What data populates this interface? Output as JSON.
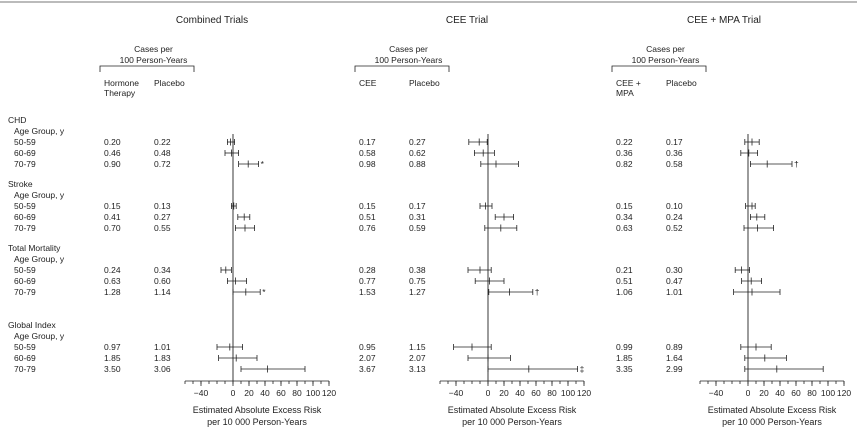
{
  "row_labels": [
    {
      "text": "CHD",
      "group": 0
    },
    {
      "text": "Age Group, y",
      "group": 0
    },
    {
      "text": "50-59",
      "group": 0,
      "row": 0
    },
    {
      "text": "60-69",
      "group": 0,
      "row": 1
    },
    {
      "text": "70-79",
      "group": 0,
      "row": 2
    },
    {
      "text": "Stroke",
      "group": 1
    },
    {
      "text": "Age Group, y",
      "group": 1
    },
    {
      "text": "50-59",
      "group": 1,
      "row": 0
    },
    {
      "text": "60-69",
      "group": 1,
      "row": 1
    },
    {
      "text": "70-79",
      "group": 1,
      "row": 2
    },
    {
      "text": "Total Mortality",
      "group": 2
    },
    {
      "text": "Age Group, y",
      "group": 2
    },
    {
      "text": "50-59",
      "group": 2,
      "row": 0
    },
    {
      "text": "60-69",
      "group": 2,
      "row": 1
    },
    {
      "text": "70-79",
      "group": 2,
      "row": 2
    },
    {
      "text": "Global Index",
      "group": 3
    },
    {
      "text": "Age Group, y",
      "group": 3
    },
    {
      "text": "50-59",
      "group": 3,
      "row": 0
    },
    {
      "text": "60-69",
      "group": 3,
      "row": 1
    },
    {
      "text": "70-79",
      "group": 3,
      "row": 2
    }
  ],
  "chart_data": [
    {
      "type": "forest",
      "title": "Combined Trials",
      "cases_header": [
        "Cases per",
        "100 Person-Years"
      ],
      "col_labels": [
        [
          "Hormone",
          "Therapy"
        ],
        [
          "Placebo"
        ]
      ],
      "xlabel": [
        "Estimated Absolute Excess Risk",
        "per 10 000 Person-Years"
      ],
      "xlim": [
        -60,
        120
      ],
      "xticks": [
        -40,
        0,
        20,
        40,
        60,
        80,
        100,
        120
      ],
      "xtick_labels": [
        "−40",
        "0",
        "20",
        "40",
        "60",
        "80",
        "100",
        "120"
      ],
      "outcomes": [
        "CHD",
        "Stroke",
        "Total Mortality",
        "Global Index"
      ],
      "age_groups": [
        "50-59",
        "60-69",
        "70-79"
      ],
      "rows": [
        {
          "treat": "0.20",
          "placebo": "0.22",
          "est": -3,
          "lo": -7,
          "hi": 2,
          "mark": ""
        },
        {
          "treat": "0.46",
          "placebo": "0.48",
          "est": -2,
          "lo": -10,
          "hi": 7,
          "mark": ""
        },
        {
          "treat": "0.90",
          "placebo": "0.72",
          "est": 19,
          "lo": 7,
          "hi": 32,
          "mark": "*"
        },
        {
          "treat": "0.15",
          "placebo": "0.13",
          "est": 1,
          "lo": -2,
          "hi": 4,
          "mark": ""
        },
        {
          "treat": "0.41",
          "placebo": "0.27",
          "est": 14,
          "lo": 6,
          "hi": 21,
          "mark": ""
        },
        {
          "treat": "0.70",
          "placebo": "0.55",
          "est": 15,
          "lo": 3,
          "hi": 27,
          "mark": ""
        },
        {
          "treat": "0.24",
          "placebo": "0.34",
          "est": -9,
          "lo": -15,
          "hi": -2,
          "mark": ""
        },
        {
          "treat": "0.63",
          "placebo": "0.60",
          "est": 3,
          "lo": -7,
          "hi": 17,
          "mark": ""
        },
        {
          "treat": "1.28",
          "placebo": "1.14",
          "est": 16,
          "lo": 0,
          "hi": 34,
          "mark": "*"
        },
        {
          "treat": "0.97",
          "placebo": "1.01",
          "est": -4,
          "lo": -20,
          "hi": 12,
          "mark": ""
        },
        {
          "treat": "1.85",
          "placebo": "1.83",
          "est": 4,
          "lo": -18,
          "hi": 30,
          "mark": ""
        },
        {
          "treat": "3.50",
          "placebo": "3.06",
          "est": 43,
          "lo": 10,
          "hi": 90,
          "mark": ""
        }
      ]
    },
    {
      "type": "forest",
      "title": "CEE Trial",
      "cases_header": [
        "Cases per",
        "100 Person-Years"
      ],
      "col_labels": [
        [
          "CEE"
        ],
        [
          "Placebo"
        ]
      ],
      "xlabel": [
        "Estimated Absolute Excess Risk",
        "per 10 000 Person-Years"
      ],
      "xlim": [
        -60,
        120
      ],
      "xticks": [
        -40,
        0,
        20,
        40,
        60,
        80,
        100,
        120
      ],
      "xtick_labels": [
        "−40",
        "0",
        "20",
        "40",
        "60",
        "80",
        "100",
        "120"
      ],
      "outcomes": [
        "CHD",
        "Stroke",
        "Total Mortality",
        "Global Index"
      ],
      "age_groups": [
        "50-59",
        "60-69",
        "70-79"
      ],
      "rows": [
        {
          "treat": "0.17",
          "placebo": "0.27",
          "est": -11,
          "lo": -24,
          "hi": -1,
          "mark": ""
        },
        {
          "treat": "0.58",
          "placebo": "0.62",
          "est": -6,
          "lo": -17,
          "hi": 8,
          "mark": ""
        },
        {
          "treat": "0.98",
          "placebo": "0.88",
          "est": 10,
          "lo": -9,
          "hi": 38,
          "mark": ""
        },
        {
          "treat": "0.15",
          "placebo": "0.17",
          "est": -3,
          "lo": -10,
          "hi": 5,
          "mark": ""
        },
        {
          "treat": "0.51",
          "placebo": "0.31",
          "est": 20,
          "lo": 9,
          "hi": 32,
          "mark": ""
        },
        {
          "treat": "0.76",
          "placebo": "0.59",
          "est": 16,
          "lo": -4,
          "hi": 36,
          "mark": ""
        },
        {
          "treat": "0.28",
          "placebo": "0.38",
          "est": -10,
          "lo": -25,
          "hi": 4,
          "mark": ""
        },
        {
          "treat": "0.77",
          "placebo": "0.75",
          "est": 2,
          "lo": -16,
          "hi": 20,
          "mark": ""
        },
        {
          "treat": "1.53",
          "placebo": "1.27",
          "est": 27,
          "lo": 1,
          "hi": 56,
          "mark": "†"
        },
        {
          "treat": "0.95",
          "placebo": "1.15",
          "est": -20,
          "lo": -43,
          "hi": 4,
          "mark": ""
        },
        {
          "treat": "2.07",
          "placebo": "2.07",
          "est": 0,
          "lo": -25,
          "hi": 28,
          "mark": ""
        },
        {
          "treat": "3.67",
          "placebo": "3.13",
          "est": 51,
          "lo": 0,
          "hi": 112,
          "mark": "‡"
        }
      ]
    },
    {
      "type": "forest",
      "title": "CEE + MPA Trial",
      "cases_header": [
        "Cases per",
        "100 Person-Years"
      ],
      "col_labels": [
        [
          "CEE +",
          "MPA"
        ],
        [
          "Placebo"
        ]
      ],
      "xlabel": [
        "Estimated Absolute Excess Risk",
        "per 10 000 Person-Years"
      ],
      "xlim": [
        -60,
        120
      ],
      "xticks": [
        -40,
        0,
        20,
        40,
        60,
        80,
        100,
        120
      ],
      "xtick_labels": [
        "−40",
        "0",
        "20",
        "40",
        "60",
        "80",
        "100",
        "120"
      ],
      "outcomes": [
        "CHD",
        "Stroke",
        "Total Mortality",
        "Global Index"
      ],
      "age_groups": [
        "50-59",
        "60-69",
        "70-79"
      ],
      "rows": [
        {
          "treat": "0.22",
          "placebo": "0.17",
          "est": 5,
          "lo": -4,
          "hi": 14,
          "mark": ""
        },
        {
          "treat": "0.36",
          "placebo": "0.36",
          "est": 1,
          "lo": -9,
          "hi": 12,
          "mark": ""
        },
        {
          "treat": "0.82",
          "placebo": "0.58",
          "est": 24,
          "lo": 3,
          "hi": 55,
          "mark": "†"
        },
        {
          "treat": "0.15",
          "placebo": "0.10",
          "est": 5,
          "lo": -3,
          "hi": 9,
          "mark": ""
        },
        {
          "treat": "0.34",
          "placebo": "0.24",
          "est": 11,
          "lo": 3,
          "hi": 21,
          "mark": ""
        },
        {
          "treat": "0.63",
          "placebo": "0.52",
          "est": 12,
          "lo": -5,
          "hi": 32,
          "mark": ""
        },
        {
          "treat": "0.21",
          "placebo": "0.30",
          "est": -8,
          "lo": -16,
          "hi": 2,
          "mark": ""
        },
        {
          "treat": "0.51",
          "placebo": "0.47",
          "est": 4,
          "lo": -8,
          "hi": 17,
          "mark": ""
        },
        {
          "treat": "1.06",
          "placebo": "1.01",
          "est": 5,
          "lo": -18,
          "hi": 40,
          "mark": ""
        },
        {
          "treat": "0.99",
          "placebo": "0.89",
          "est": 10,
          "lo": -9,
          "hi": 29,
          "mark": ""
        },
        {
          "treat": "1.85",
          "placebo": "1.64",
          "est": 21,
          "lo": -4,
          "hi": 48,
          "mark": ""
        },
        {
          "treat": "3.35",
          "placebo": "2.99",
          "est": 36,
          "lo": -4,
          "hi": 94,
          "mark": ""
        }
      ]
    }
  ]
}
